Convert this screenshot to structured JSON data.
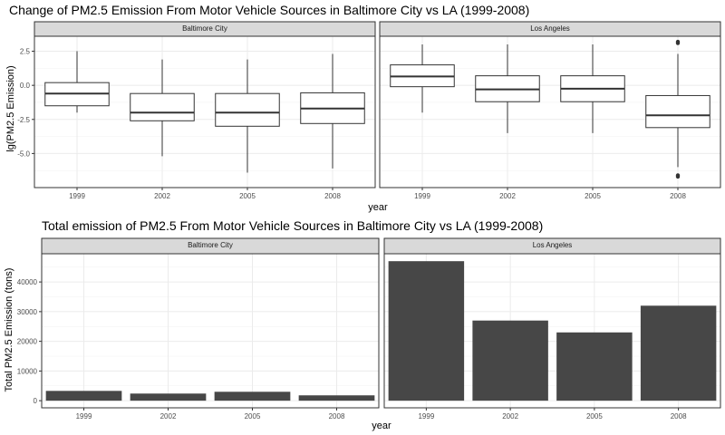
{
  "chart_data": [
    {
      "type": "boxplot",
      "title": "Change of PM2.5 Emission From Motor Vehicle Sources in Baltimore City vs LA (1999-2008)",
      "xlabel": "year",
      "ylabel": "lg(PM2.5 Emission)",
      "categories": [
        "1999",
        "2002",
        "2005",
        "2008"
      ],
      "ylim": [
        -7.5,
        3.6
      ],
      "yticks": [
        2.5,
        0.0,
        -2.5,
        -5.0
      ],
      "ytick_labels": [
        "2.5",
        "0.0",
        "-2.5",
        "-5.0"
      ],
      "grid": true,
      "facets": [
        {
          "label": "Baltimore City",
          "boxes": [
            {
              "x": "1999",
              "whisker_low": -2.0,
              "q1": -1.5,
              "median": -0.6,
              "q3": 0.2,
              "whisker_high": 2.5,
              "outliers": []
            },
            {
              "x": "2002",
              "whisker_low": -5.2,
              "q1": -2.6,
              "median": -2.0,
              "q3": -0.6,
              "whisker_high": 1.9,
              "outliers": []
            },
            {
              "x": "2005",
              "whisker_low": -6.4,
              "q1": -3.0,
              "median": -2.0,
              "q3": -0.6,
              "whisker_high": 1.9,
              "outliers": []
            },
            {
              "x": "2008",
              "whisker_low": -6.1,
              "q1": -2.8,
              "median": -1.7,
              "q3": -0.55,
              "whisker_high": 2.3,
              "outliers": []
            }
          ]
        },
        {
          "label": "Los Angeles",
          "boxes": [
            {
              "x": "1999",
              "whisker_low": -2.0,
              "q1": -0.1,
              "median": 0.65,
              "q3": 1.5,
              "whisker_high": 3.0,
              "outliers": []
            },
            {
              "x": "2002",
              "whisker_low": -3.5,
              "q1": -1.2,
              "median": -0.3,
              "q3": 0.7,
              "whisker_high": 3.0,
              "outliers": []
            },
            {
              "x": "2005",
              "whisker_low": -3.5,
              "q1": -1.2,
              "median": -0.25,
              "q3": 0.7,
              "whisker_high": 3.0,
              "outliers": []
            },
            {
              "x": "2008",
              "whisker_low": -6.0,
              "q1": -3.1,
              "median": -2.2,
              "q3": -0.75,
              "whisker_high": 2.3,
              "outliers": [
                3.1,
                3.2,
                -6.6,
                -6.7
              ]
            }
          ]
        }
      ]
    },
    {
      "type": "bar",
      "title": "Total emission of PM2.5 From Motor Vehicle Sources in Baltimore City vs LA (1999-2008)",
      "xlabel": "year",
      "ylabel": "Total PM2.5 Emission (tons)",
      "categories": [
        "1999",
        "2002",
        "2005",
        "2008"
      ],
      "ylim": [
        -2400,
        49500
      ],
      "yticks": [
        0,
        10000,
        20000,
        30000,
        40000
      ],
      "ytick_labels": [
        "0",
        "10000",
        "20000",
        "30000",
        "40000"
      ],
      "grid": true,
      "bar_color": "#474747",
      "facets": [
        {
          "label": "Baltimore City",
          "values": [
            3300,
            2400,
            3000,
            1800
          ]
        },
        {
          "label": "Los Angeles",
          "values": [
            47000,
            27000,
            23000,
            32000
          ]
        }
      ]
    }
  ]
}
